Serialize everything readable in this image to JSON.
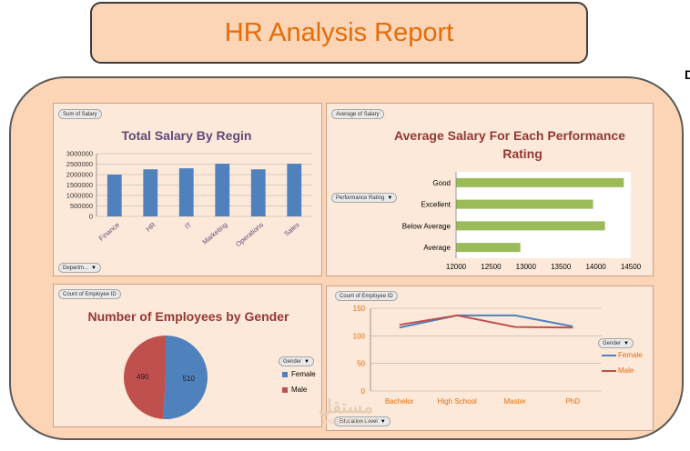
{
  "page": {
    "title": "HR Analysis Report"
  },
  "corner_glyph": "D",
  "watermark": {
    "arabic": "مستقل",
    "domain": "mostaql.com"
  },
  "panels": {
    "salary_region": {
      "value_pill": "Sum of Salary",
      "filter_pill": "Departm..."
    },
    "salary_rating": {
      "value_pill": "Average of Salary",
      "filter_pill": "Performance Rating"
    },
    "gender": {
      "value_pill": "Count of Employee ID",
      "legend_pill": "Gender",
      "legend": [
        "Female",
        "Male"
      ]
    },
    "education": {
      "value_pill": "Count of Employee ID",
      "legend_pill": "Gender",
      "filter_pill": "Education Level",
      "legend": [
        "Female",
        "Male"
      ]
    }
  },
  "colors": {
    "bar": "#4f81bd",
    "hbar": "#9bbb59",
    "female": "#4f81bd",
    "male": "#c0504d",
    "title_purple": "#5f497a",
    "title_red": "#953734",
    "orange": "#e46c0a"
  },
  "chart_data": [
    {
      "type": "bar",
      "title": "Total Salary By Regin",
      "categories": [
        "Finance",
        "HR",
        "IT",
        "Marketing",
        "Operations",
        "Sales"
      ],
      "values": [
        2000000,
        2250000,
        2300000,
        2520000,
        2250000,
        2520000
      ],
      "ylim": [
        0,
        3000000
      ],
      "yticks": [
        "3000000",
        "2500000",
        "2000000",
        "1500000",
        "1000000",
        "500000",
        "0"
      ],
      "grid": true,
      "legend": "none"
    },
    {
      "type": "bar",
      "orientation": "horizontal",
      "title": "Average  Salary For Each Performance Rating",
      "categories": [
        "Good",
        "Excellent",
        "Below Average",
        "Average"
      ],
      "values": [
        14400,
        13960,
        14130,
        12920
      ],
      "xlim": [
        12000,
        14500
      ],
      "xticks": [
        "12000",
        "12500",
        "13000",
        "13500",
        "14000",
        "14500"
      ],
      "grid": false,
      "legend": "none"
    },
    {
      "type": "pie",
      "title": "Number of Employees by Gender",
      "categories": [
        "Female",
        "Male"
      ],
      "values": [
        510,
        490
      ],
      "legend": "right"
    },
    {
      "type": "line",
      "categories": [
        "Bachelor",
        "High School",
        "Master",
        "PhD"
      ],
      "series": [
        {
          "name": "Female",
          "values": [
            115,
            137,
            137,
            117
          ]
        },
        {
          "name": "Male",
          "values": [
            120,
            137,
            116,
            115
          ]
        }
      ],
      "ylim": [
        0,
        150
      ],
      "yticks": [
        "150",
        "100",
        "50",
        "0"
      ],
      "grid": true,
      "legend": "right"
    }
  ]
}
